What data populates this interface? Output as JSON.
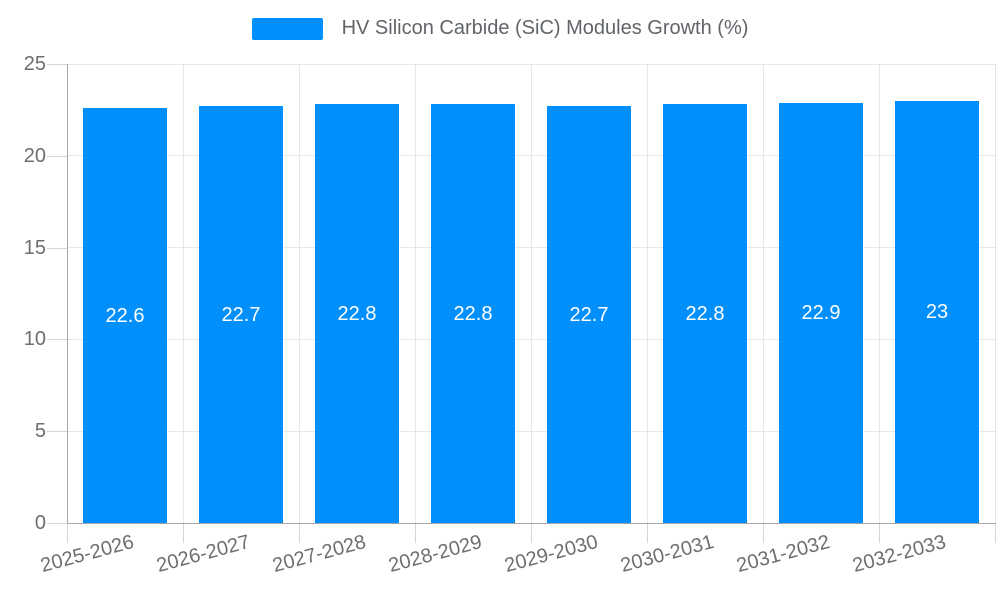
{
  "chart_data": {
    "type": "bar",
    "title": "",
    "categories": [
      "2025-2026",
      "2026-2027",
      "2027-2028",
      "2028-2029",
      "2029-2030",
      "2030-2031",
      "2031-2032",
      "2032-2033"
    ],
    "series": [
      {
        "name": "HV Silicon Carbide (SiC) Modules Growth (%)",
        "values": [
          22.6,
          22.7,
          22.8,
          22.8,
          22.7,
          22.8,
          22.9,
          23
        ]
      }
    ],
    "xlabel": "",
    "ylabel": "",
    "ylim": [
      0,
      25
    ],
    "yticks": [
      0,
      5,
      10,
      15,
      20,
      25
    ],
    "grid": true,
    "legend_position": "top",
    "data_label_position": "center",
    "x_label_rotation_deg": -15,
    "colors": {
      "bar": "#008FFB",
      "grid": "#e7e7e7",
      "axis_border": "#a8a8a8",
      "tick": "#d6d6d6",
      "axis_label": "#6e6e6e",
      "legend_text": "#616569",
      "data_label": "#ffffff",
      "background": "#ffffff"
    }
  }
}
